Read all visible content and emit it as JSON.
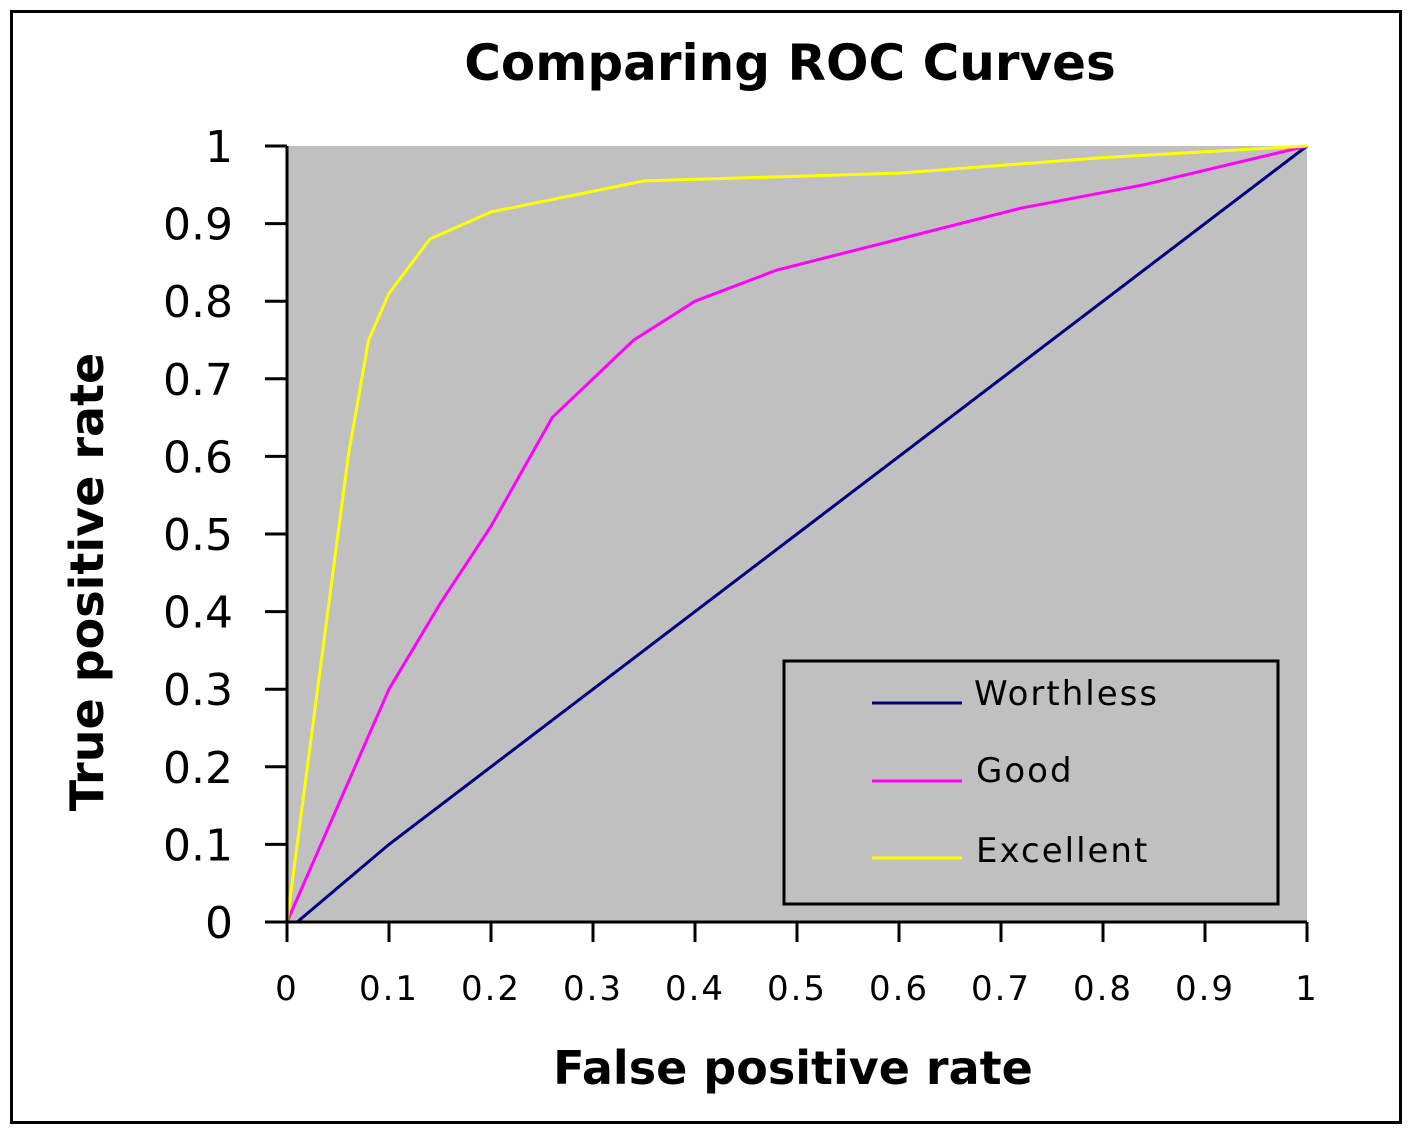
{
  "chart_data": {
    "type": "line",
    "title": "Comparing ROC Curves",
    "xlabel": "False positive rate",
    "ylabel": "True positive rate",
    "xlim": [
      0,
      1
    ],
    "ylim": [
      0,
      1
    ],
    "x_ticks": [
      "0",
      "0.1",
      "0.2",
      "0.3",
      "0.4",
      "0.5",
      "0.6",
      "0.7",
      "0.8",
      "0.9",
      "1"
    ],
    "y_ticks": [
      "0",
      "0.1",
      "0.2",
      "0.3",
      "0.4",
      "0.5",
      "0.6",
      "0.7",
      "0.8",
      "0.9",
      "1"
    ],
    "grid": false,
    "legend": "bottom-right",
    "plot_background": "#c0c0c0",
    "series": [
      {
        "name": "Worthless",
        "color": "#000080",
        "points": [
          [
            0.01,
            0
          ],
          [
            0.1,
            0.1
          ],
          [
            0.2,
            0.2
          ],
          [
            0.3,
            0.3
          ],
          [
            0.4,
            0.4
          ],
          [
            0.5,
            0.5
          ],
          [
            0.6,
            0.6
          ],
          [
            0.7,
            0.7
          ],
          [
            0.8,
            0.8
          ],
          [
            0.9,
            0.9
          ],
          [
            1,
            1
          ]
        ]
      },
      {
        "name": "Good",
        "color": "#ff00ff",
        "points": [
          [
            0,
            0
          ],
          [
            0.05,
            0.15
          ],
          [
            0.1,
            0.3
          ],
          [
            0.15,
            0.41
          ],
          [
            0.2,
            0.51
          ],
          [
            0.26,
            0.65
          ],
          [
            0.34,
            0.75
          ],
          [
            0.4,
            0.8
          ],
          [
            0.48,
            0.84
          ],
          [
            0.6,
            0.88
          ],
          [
            0.72,
            0.92
          ],
          [
            0.84,
            0.95
          ],
          [
            1,
            1
          ]
        ]
      },
      {
        "name": "Excellent",
        "color": "#ffff00",
        "points": [
          [
            0,
            0
          ],
          [
            0.02,
            0.2
          ],
          [
            0.04,
            0.4
          ],
          [
            0.06,
            0.6
          ],
          [
            0.08,
            0.75
          ],
          [
            0.1,
            0.81
          ],
          [
            0.14,
            0.88
          ],
          [
            0.2,
            0.915
          ],
          [
            0.35,
            0.955
          ],
          [
            0.6,
            0.965
          ],
          [
            0.8,
            0.985
          ],
          [
            1,
            1
          ]
        ]
      }
    ]
  }
}
